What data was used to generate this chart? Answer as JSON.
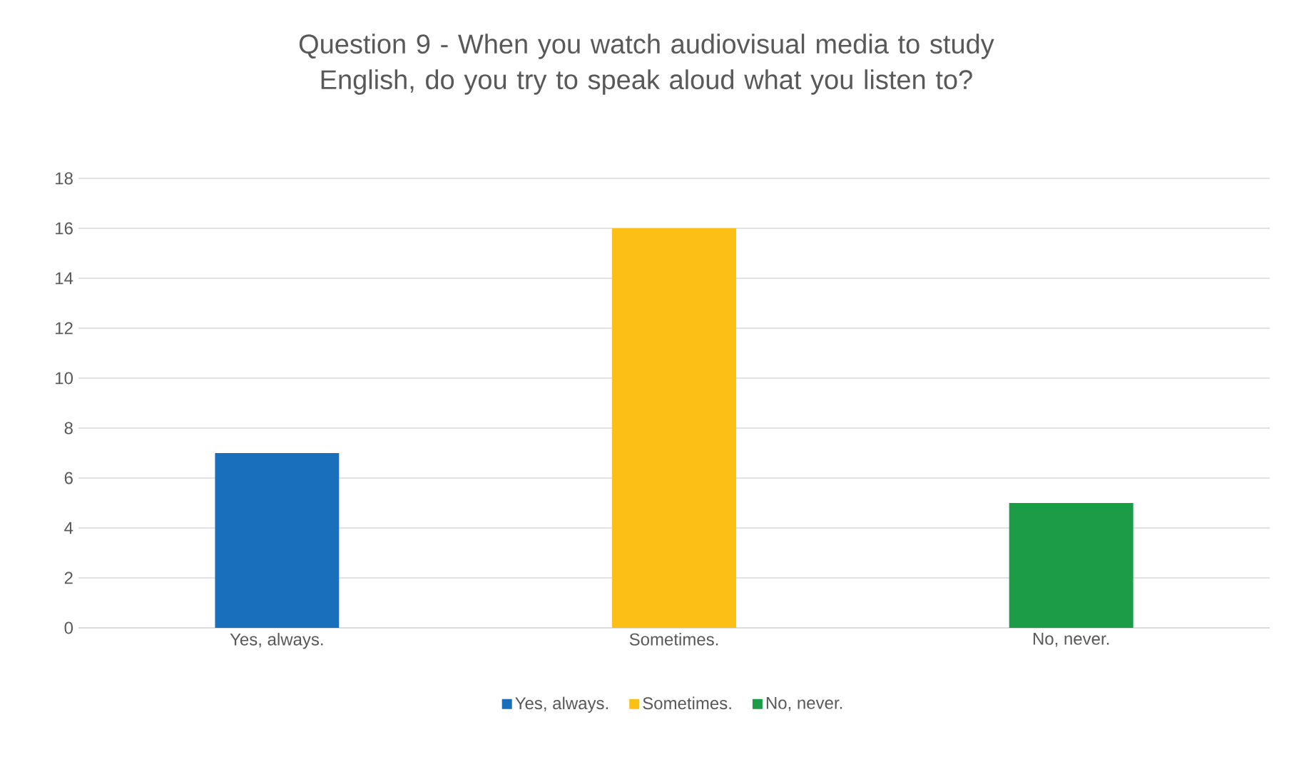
{
  "chart_data": {
    "type": "bar",
    "title": "Question 9 - When you watch audiovisual media to study English, do you try to speak aloud what you listen to?",
    "categories": [
      "Yes, always.",
      "Sometimes.",
      "No, never."
    ],
    "series": [
      {
        "name": "Yes, always.",
        "color": "#1a6fbd",
        "values": [
          7,
          null,
          null
        ]
      },
      {
        "name": "Sometimes.",
        "color": "#fbbf16",
        "values": [
          null,
          16,
          null
        ]
      },
      {
        "name": "No, never.",
        "color": "#1d9c48",
        "values": [
          null,
          null,
          5
        ]
      }
    ],
    "ylim": [
      0,
      18
    ],
    "yticks": [
      0,
      2,
      4,
      6,
      8,
      10,
      12,
      14,
      16,
      18
    ],
    "grid": "y",
    "legend": "bottom"
  }
}
